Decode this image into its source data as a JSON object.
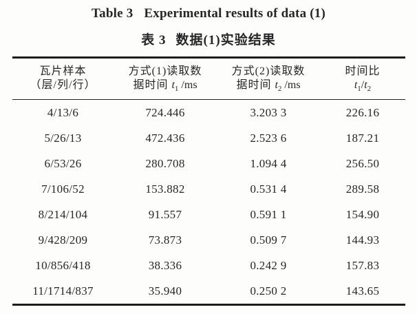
{
  "title": {
    "en_label": "Table 3",
    "en_text": "Experimental results of data (1)",
    "zh_label": "表 3",
    "zh_text": "数据(1)实验结果"
  },
  "header": {
    "col1": {
      "line1": "瓦片样本",
      "line2": "（层/列/行）"
    },
    "col2": {
      "line1": "方式(1)读取数",
      "line2_prefix": "据时间",
      "var": "t",
      "sub": "1",
      "unit": "/ms"
    },
    "col3": {
      "line1": "方式(2)读取数",
      "line2_prefix": "据时间",
      "var": "t",
      "sub": "2",
      "unit": "/ms"
    },
    "col4": {
      "line1": "时间比",
      "num_var": "t",
      "num_sub": "1",
      "slash": "/",
      "den_var": "t",
      "den_sub": "2"
    }
  },
  "chart_data": {
    "type": "table",
    "title": "Table 3 Experimental results of data (1) / 表3 数据(1)实验结果",
    "columns": [
      "瓦片样本（层/列/行）",
      "方式(1)读取数据时间 t1 /ms",
      "方式(2)读取数据时间 t2 /ms",
      "时间比 t1/t2"
    ],
    "rows": [
      {
        "sample": "4/13/6",
        "t1": "724.446",
        "t2": "3.203 3",
        "ratio": "226.16"
      },
      {
        "sample": "5/26/13",
        "t1": "472.436",
        "t2": "2.523 6",
        "ratio": "187.21"
      },
      {
        "sample": "6/53/26",
        "t1": "280.708",
        "t2": "1.094 4",
        "ratio": "256.50"
      },
      {
        "sample": "7/106/52",
        "t1": "153.882",
        "t2": "0.531 4",
        "ratio": "289.58"
      },
      {
        "sample": "8/214/104",
        "t1": "91.557",
        "t2": "0.591 1",
        "ratio": "154.90"
      },
      {
        "sample": "9/428/209",
        "t1": "73.873",
        "t2": "0.509 7",
        "ratio": "144.93"
      },
      {
        "sample": "10/856/418",
        "t1": "38.336",
        "t2": "0.242 9",
        "ratio": "157.83"
      },
      {
        "sample": "11/1714/837",
        "t1": "35.940",
        "t2": "0.250 2",
        "ratio": "143.65"
      }
    ]
  },
  "colors": {
    "background": "#fdfdfc",
    "text": "#262626",
    "rule_thick": "#1c1c1c",
    "rule_thin": "#222222"
  }
}
